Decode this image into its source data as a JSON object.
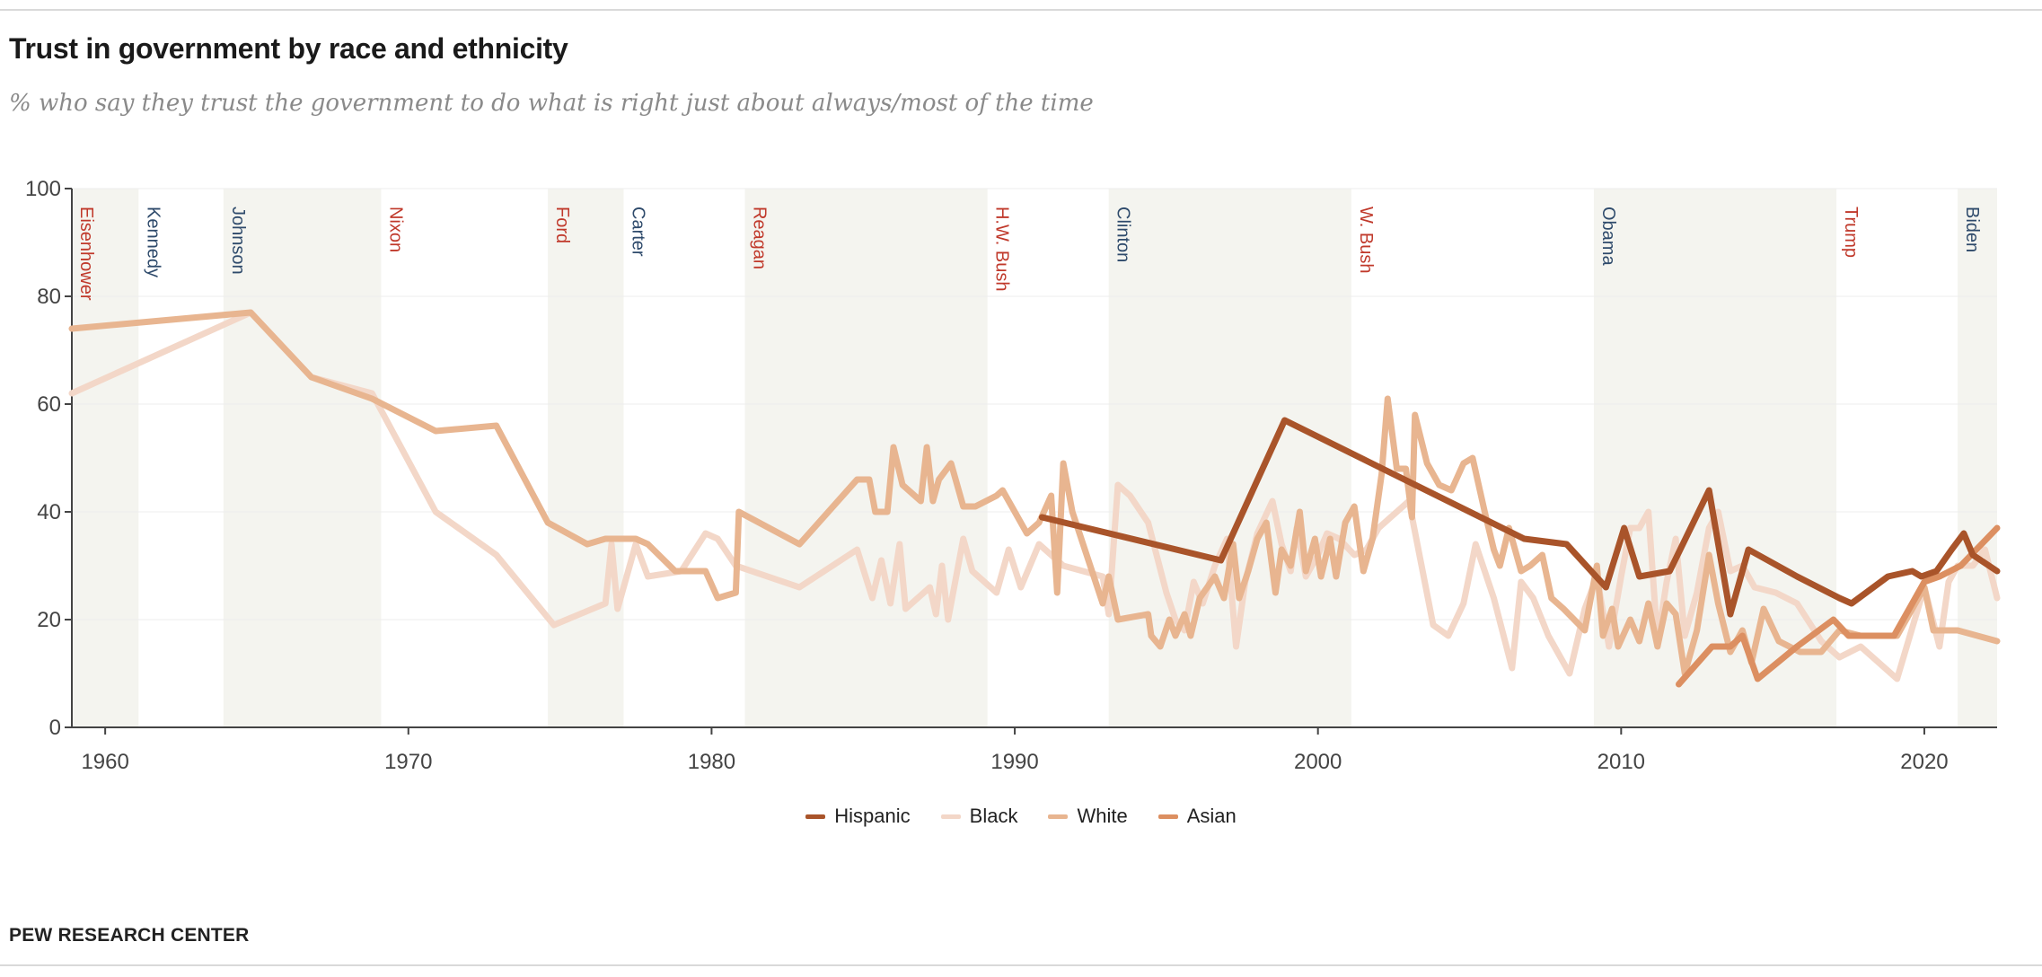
{
  "title": "Trust in government by race and ethnicity",
  "subtitle": "% who say they trust the government to do what is right just about always/most of the time",
  "source": "PEW RESEARCH CENTER",
  "colors": {
    "shade": "#f4f4ef",
    "rep_label": "#c0392b",
    "dem_label": "#2e4a6b",
    "axis": "#444444",
    "grid": "#ededed"
  },
  "chart_data": {
    "type": "line",
    "title": "Trust in government by race and ethnicity",
    "xlabel": "",
    "ylabel": "",
    "xlim": [
      1958.9,
      2022.4
    ],
    "ylim": [
      0,
      100
    ],
    "grid": true,
    "legend": "bottom-center",
    "x_ticks": [
      1960,
      1970,
      1980,
      1990,
      2000,
      2010,
      2020
    ],
    "y_ticks": [
      0,
      20,
      40,
      60,
      80,
      100
    ],
    "presidents": [
      {
        "name": "Eisenhower",
        "start": 1958.9,
        "end": 1961.1,
        "party": "R",
        "shaded": true
      },
      {
        "name": "Kennedy",
        "start": 1961.1,
        "end": 1963.9,
        "party": "D",
        "shaded": false
      },
      {
        "name": "Johnson",
        "start": 1963.9,
        "end": 1969.1,
        "party": "D",
        "shaded": true
      },
      {
        "name": "Nixon",
        "start": 1969.1,
        "end": 1974.6,
        "party": "R",
        "shaded": false
      },
      {
        "name": "Ford",
        "start": 1974.6,
        "end": 1977.1,
        "party": "R",
        "shaded": true
      },
      {
        "name": "Carter",
        "start": 1977.1,
        "end": 1981.1,
        "party": "D",
        "shaded": false
      },
      {
        "name": "Reagan",
        "start": 1981.1,
        "end": 1989.1,
        "party": "R",
        "shaded": true
      },
      {
        "name": "H.W. Bush",
        "start": 1989.1,
        "end": 1993.1,
        "party": "R",
        "shaded": false
      },
      {
        "name": "Clinton",
        "start": 1993.1,
        "end": 2001.1,
        "party": "D",
        "shaded": true
      },
      {
        "name": "W. Bush",
        "start": 2001.1,
        "end": 2009.1,
        "party": "R",
        "shaded": false
      },
      {
        "name": "Obama",
        "start": 2009.1,
        "end": 2017.1,
        "party": "D",
        "shaded": true
      },
      {
        "name": "Trump",
        "start": 2017.1,
        "end": 2021.1,
        "party": "R",
        "shaded": false
      },
      {
        "name": "Biden",
        "start": 2021.1,
        "end": 2022.4,
        "party": "D",
        "shaded": true
      }
    ],
    "series": [
      {
        "name": "Black",
        "color": "#f3d7c8",
        "points": [
          [
            1958.9,
            62
          ],
          [
            1964.8,
            77
          ],
          [
            1966.8,
            65
          ],
          [
            1968.8,
            62
          ],
          [
            1970.9,
            40
          ],
          [
            1972.9,
            32
          ],
          [
            1974.8,
            19
          ],
          [
            1976.5,
            23
          ],
          [
            1976.7,
            34
          ],
          [
            1976.9,
            22
          ],
          [
            1977.5,
            34
          ],
          [
            1977.9,
            28
          ],
          [
            1979.0,
            29
          ],
          [
            1979.8,
            36
          ],
          [
            1980.2,
            35
          ],
          [
            1980.8,
            30
          ],
          [
            1982.9,
            26
          ],
          [
            1984.8,
            33
          ],
          [
            1985.3,
            24
          ],
          [
            1985.6,
            31
          ],
          [
            1985.9,
            23
          ],
          [
            1986.2,
            34
          ],
          [
            1986.4,
            22
          ],
          [
            1987.2,
            26
          ],
          [
            1987.4,
            21
          ],
          [
            1987.6,
            30
          ],
          [
            1987.8,
            20
          ],
          [
            1988.3,
            35
          ],
          [
            1988.6,
            29
          ],
          [
            1989.4,
            25
          ],
          [
            1989.8,
            33
          ],
          [
            1990.2,
            26
          ],
          [
            1990.8,
            34
          ],
          [
            1991.6,
            30
          ],
          [
            1992.9,
            28
          ],
          [
            1993.1,
            21
          ],
          [
            1993.4,
            45
          ],
          [
            1993.8,
            43
          ],
          [
            1994.4,
            38
          ],
          [
            1995.0,
            25
          ],
          [
            1995.3,
            20
          ],
          [
            1995.6,
            18
          ],
          [
            1995.9,
            27
          ],
          [
            1996.2,
            23
          ],
          [
            1996.6,
            30
          ],
          [
            1997.0,
            35
          ],
          [
            1997.3,
            15
          ],
          [
            1997.6,
            27
          ],
          [
            1998.0,
            36
          ],
          [
            1998.5,
            42
          ],
          [
            1998.8,
            34
          ],
          [
            1999.1,
            29
          ],
          [
            1999.3,
            37
          ],
          [
            1999.6,
            28
          ],
          [
            2000.0,
            32
          ],
          [
            2000.3,
            36
          ],
          [
            2000.7,
            35
          ],
          [
            2001.2,
            32
          ],
          [
            2001.6,
            33
          ],
          [
            2002.0,
            37
          ],
          [
            2002.4,
            39
          ],
          [
            2003.0,
            42
          ],
          [
            2003.8,
            19
          ],
          [
            2004.3,
            17
          ],
          [
            2004.8,
            23
          ],
          [
            2005.2,
            34
          ],
          [
            2005.8,
            24
          ],
          [
            2006.4,
            11
          ],
          [
            2006.7,
            27
          ],
          [
            2007.1,
            24
          ],
          [
            2007.6,
            17
          ],
          [
            2008.3,
            10
          ],
          [
            2008.8,
            22
          ],
          [
            2009.2,
            28
          ],
          [
            2009.6,
            15
          ],
          [
            2010.0,
            28
          ],
          [
            2010.3,
            37
          ],
          [
            2010.6,
            37
          ],
          [
            2010.9,
            40
          ],
          [
            2011.2,
            16
          ],
          [
            2011.5,
            27
          ],
          [
            2011.8,
            35
          ],
          [
            2012.1,
            17
          ],
          [
            2012.5,
            25
          ],
          [
            2012.9,
            37
          ],
          [
            2013.2,
            40
          ],
          [
            2013.6,
            29
          ],
          [
            2014.0,
            30
          ],
          [
            2014.4,
            26
          ],
          [
            2015.1,
            25
          ],
          [
            2015.8,
            23
          ],
          [
            2016.6,
            16
          ],
          [
            2017.2,
            13
          ],
          [
            2017.9,
            15
          ],
          [
            2019.1,
            9
          ],
          [
            2020.0,
            26
          ],
          [
            2020.5,
            15
          ],
          [
            2020.8,
            27
          ],
          [
            2021.1,
            30
          ],
          [
            2021.6,
            30
          ],
          [
            2022.0,
            33
          ],
          [
            2022.4,
            24
          ]
        ]
      },
      {
        "name": "White",
        "color": "#e8b590",
        "points": [
          [
            1958.9,
            74
          ],
          [
            1964.8,
            77
          ],
          [
            1966.8,
            65
          ],
          [
            1968.8,
            61
          ],
          [
            1970.9,
            55
          ],
          [
            1972.9,
            56
          ],
          [
            1974.6,
            38
          ],
          [
            1975.9,
            34
          ],
          [
            1976.5,
            35
          ],
          [
            1976.9,
            35
          ],
          [
            1977.5,
            35
          ],
          [
            1977.9,
            34
          ],
          [
            1978.8,
            29
          ],
          [
            1979.8,
            29
          ],
          [
            1980.2,
            24
          ],
          [
            1980.8,
            25
          ],
          [
            1980.9,
            40
          ],
          [
            1982.9,
            34
          ],
          [
            1984.8,
            46
          ],
          [
            1985.2,
            46
          ],
          [
            1985.4,
            40
          ],
          [
            1985.8,
            40
          ],
          [
            1986.0,
            52
          ],
          [
            1986.3,
            45
          ],
          [
            1986.9,
            42
          ],
          [
            1987.1,
            52
          ],
          [
            1987.3,
            42
          ],
          [
            1987.5,
            46
          ],
          [
            1987.9,
            49
          ],
          [
            1988.3,
            41
          ],
          [
            1988.7,
            41
          ],
          [
            1989.4,
            43
          ],
          [
            1989.6,
            44
          ],
          [
            1989.9,
            41
          ],
          [
            1990.4,
            36
          ],
          [
            1990.8,
            38
          ],
          [
            1991.2,
            43
          ],
          [
            1991.4,
            25
          ],
          [
            1991.6,
            49
          ],
          [
            1991.9,
            40
          ],
          [
            1992.9,
            23
          ],
          [
            1993.1,
            28
          ],
          [
            1993.4,
            20
          ],
          [
            1994.4,
            21
          ],
          [
            1994.5,
            17
          ],
          [
            1994.8,
            15
          ],
          [
            1995.1,
            20
          ],
          [
            1995.3,
            17
          ],
          [
            1995.6,
            21
          ],
          [
            1995.8,
            17
          ],
          [
            1996.1,
            24
          ],
          [
            1996.6,
            28
          ],
          [
            1996.9,
            24
          ],
          [
            1997.2,
            34
          ],
          [
            1997.4,
            24
          ],
          [
            1997.7,
            29
          ],
          [
            1998.0,
            35
          ],
          [
            1998.3,
            38
          ],
          [
            1998.6,
            25
          ],
          [
            1998.8,
            33
          ],
          [
            1999.1,
            30
          ],
          [
            1999.4,
            40
          ],
          [
            1999.6,
            29
          ],
          [
            1999.9,
            35
          ],
          [
            2000.1,
            28
          ],
          [
            2000.4,
            35
          ],
          [
            2000.6,
            28
          ],
          [
            2000.9,
            38
          ],
          [
            2001.2,
            41
          ],
          [
            2001.5,
            29
          ],
          [
            2001.8,
            35
          ],
          [
            2002.1,
            47
          ],
          [
            2002.3,
            61
          ],
          [
            2002.6,
            48
          ],
          [
            2002.9,
            48
          ],
          [
            2003.1,
            39
          ],
          [
            2003.2,
            58
          ],
          [
            2003.6,
            49
          ],
          [
            2004.0,
            45
          ],
          [
            2004.4,
            44
          ],
          [
            2004.8,
            49
          ],
          [
            2005.1,
            50
          ],
          [
            2005.5,
            40
          ],
          [
            2005.8,
            33
          ],
          [
            2006.0,
            30
          ],
          [
            2006.3,
            37
          ],
          [
            2006.7,
            29
          ],
          [
            2007.0,
            30
          ],
          [
            2007.4,
            32
          ],
          [
            2007.7,
            24
          ],
          [
            2008.1,
            22
          ],
          [
            2008.8,
            18
          ],
          [
            2009.2,
            30
          ],
          [
            2009.4,
            17
          ],
          [
            2009.7,
            22
          ],
          [
            2009.9,
            15
          ],
          [
            2010.3,
            20
          ],
          [
            2010.6,
            16
          ],
          [
            2010.9,
            23
          ],
          [
            2011.2,
            15
          ],
          [
            2011.5,
            23
          ],
          [
            2011.8,
            21
          ],
          [
            2012.1,
            10
          ],
          [
            2012.5,
            18
          ],
          [
            2012.9,
            32
          ],
          [
            2013.2,
            23
          ],
          [
            2013.6,
            14
          ],
          [
            2014.0,
            18
          ],
          [
            2014.3,
            12
          ],
          [
            2014.7,
            22
          ],
          [
            2015.2,
            16
          ],
          [
            2015.9,
            14
          ],
          [
            2016.6,
            14
          ],
          [
            2017.2,
            18
          ],
          [
            2017.9,
            17
          ],
          [
            2019.1,
            17
          ],
          [
            2020.0,
            26
          ],
          [
            2020.3,
            18
          ],
          [
            2021.1,
            18
          ],
          [
            2022.4,
            16
          ]
        ]
      },
      {
        "name": "Asian",
        "color": "#dc8f61",
        "points": [
          [
            2011.9,
            8
          ],
          [
            2013.0,
            15
          ],
          [
            2013.6,
            15
          ],
          [
            2014.0,
            17
          ],
          [
            2014.5,
            9
          ],
          [
            2015.8,
            15
          ],
          [
            2017.0,
            20
          ],
          [
            2017.5,
            17
          ],
          [
            2019.0,
            17
          ],
          [
            2020.0,
            27
          ],
          [
            2020.5,
            28
          ],
          [
            2021.2,
            30
          ],
          [
            2022.4,
            37
          ]
        ]
      },
      {
        "name": "Hispanic",
        "color": "#a9542a",
        "points": [
          [
            1990.9,
            39
          ],
          [
            1996.8,
            31
          ],
          [
            1998.9,
            57
          ],
          [
            2006.8,
            35
          ],
          [
            2008.2,
            34
          ],
          [
            2009.5,
            26
          ],
          [
            2010.1,
            37
          ],
          [
            2010.6,
            28
          ],
          [
            2011.6,
            29
          ],
          [
            2012.9,
            44
          ],
          [
            2013.6,
            21
          ],
          [
            2014.2,
            33
          ],
          [
            2015.8,
            28
          ],
          [
            2017.2,
            24
          ],
          [
            2017.6,
            23
          ],
          [
            2018.8,
            28
          ],
          [
            2019.6,
            29
          ],
          [
            2019.9,
            28
          ],
          [
            2020.4,
            29
          ],
          [
            2020.9,
            33
          ],
          [
            2021.3,
            36
          ],
          [
            2021.6,
            32
          ],
          [
            2022.4,
            29
          ]
        ]
      }
    ],
    "legend_order": [
      "Hispanic",
      "Black",
      "White",
      "Asian"
    ]
  }
}
